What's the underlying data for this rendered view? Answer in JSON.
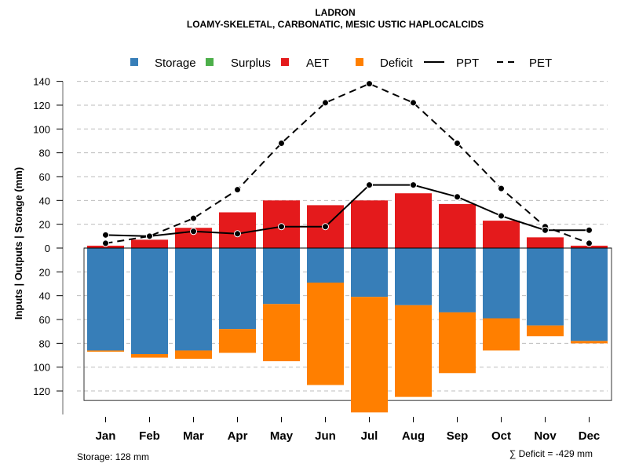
{
  "chart_data": {
    "type": "bar",
    "title": "LADRON",
    "subtitle": "LOAMY-SKELETAL, CARBONATIC, MESIC USTIC HAPLOCALCIDS",
    "ylabel": "Inputs | Outputs | Storage    (mm)",
    "xlabel": "",
    "categories": [
      "Jan",
      "Feb",
      "Mar",
      "Apr",
      "May",
      "Jun",
      "Jul",
      "Aug",
      "Sep",
      "Oct",
      "Nov",
      "Dec"
    ],
    "ylim_upper": [
      0,
      140
    ],
    "ylim_lower": [
      0,
      128
    ],
    "yticks_upper": [
      "140",
      "120",
      "100",
      "80",
      "60",
      "40",
      "20",
      "0"
    ],
    "yticks_lower": [
      "20",
      "40",
      "60",
      "80",
      "100",
      "120"
    ],
    "ytick_values_upper": [
      140,
      120,
      100,
      80,
      60,
      40,
      20,
      0
    ],
    "ytick_values_lower": [
      20,
      40,
      60,
      80,
      100,
      120
    ],
    "grid": true,
    "legend_position": "top",
    "legend": [
      {
        "label": "Storage",
        "kind": "box",
        "color": "#377EB8"
      },
      {
        "label": "Surplus",
        "kind": "box",
        "color": "#4DAF4A"
      },
      {
        "label": "AET",
        "kind": "box",
        "color": "#E41A1C"
      },
      {
        "label": "Deficit",
        "kind": "box",
        "color": "#FF7F00"
      },
      {
        "label": "PPT",
        "kind": "solid-line",
        "color": "#000000"
      },
      {
        "label": "PET",
        "kind": "dashed-line",
        "color": "#000000"
      }
    ],
    "series": [
      {
        "name": "AET",
        "direction": "up",
        "color": "#E41A1C",
        "values": [
          2,
          7,
          17,
          30,
          40,
          36,
          40,
          46,
          37,
          23,
          9,
          2
        ]
      },
      {
        "name": "Surplus",
        "direction": "up",
        "color": "#4DAF4A",
        "values": [
          0,
          0,
          0,
          0,
          0,
          0,
          0,
          0,
          0,
          0,
          0,
          0
        ]
      },
      {
        "name": "Storage",
        "direction": "down",
        "color": "#377EB8",
        "values": [
          86,
          89,
          86,
          68,
          47,
          29,
          41,
          48,
          54,
          59,
          65,
          78
        ]
      },
      {
        "name": "Deficit",
        "direction": "down",
        "color": "#FF7F00",
        "values": [
          1,
          3,
          7,
          20,
          48,
          86,
          97,
          77,
          51,
          27,
          9,
          2
        ]
      },
      {
        "name": "PPT",
        "direction": "up",
        "style": "solid-line",
        "color": "#000000",
        "values": [
          11,
          10,
          14,
          12,
          18,
          18,
          53,
          53,
          43,
          27,
          15,
          15
        ]
      },
      {
        "name": "PET",
        "direction": "up",
        "style": "dashed-line",
        "color": "#000000",
        "values": [
          4,
          10,
          25,
          49,
          88,
          122,
          138,
          122,
          88,
          50,
          18,
          4
        ]
      }
    ],
    "storage_capacity": 128,
    "annotations": {
      "storage": "Storage: 128 mm",
      "deficit_sum": "∑ Deficit = -429 mm"
    }
  }
}
